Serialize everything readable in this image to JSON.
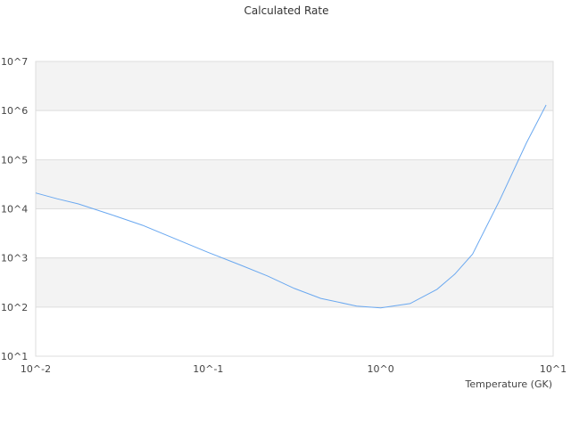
{
  "chart_data": {
    "type": "line",
    "title": "Calculated Rate",
    "xlabel": "Temperature (GK)",
    "ylabel": "",
    "xscale": "log",
    "yscale": "log",
    "xlim": [
      0.01,
      10
    ],
    "ylim": [
      10,
      10000000
    ],
    "x_ticks": [
      0.01,
      0.1,
      1,
      10
    ],
    "x_tick_labels": [
      "10^-2",
      "10^-1",
      "10^0",
      "10^1"
    ],
    "y_ticks": [
      10,
      100,
      1000,
      10000,
      100000,
      1000000,
      10000000
    ],
    "y_tick_labels": [
      "10^1",
      "10^2",
      "10^3",
      "10^4",
      "10^5",
      "10^6",
      "10^7"
    ],
    "grid": true,
    "legend": "none",
    "colors": {
      "line": "#6aa8f0",
      "band": "#f3f3f3",
      "grid": "#dddddd"
    },
    "series": [
      {
        "x": [
          0.01,
          0.0133,
          0.0177,
          0.0275,
          0.0418,
          0.0673,
          0.1,
          0.155,
          0.221,
          0.316,
          0.45,
          0.725,
          1.0,
          1.48,
          2.12,
          2.69,
          3.41,
          4.9,
          7.0,
          9.1
        ],
        "y": [
          21000,
          16000,
          12600,
          7600,
          4600,
          2300,
          1300,
          710,
          430,
          240,
          150,
          105,
          96,
          118,
          230,
          470,
          1200,
          15000,
          220000,
          1300000
        ]
      }
    ]
  }
}
